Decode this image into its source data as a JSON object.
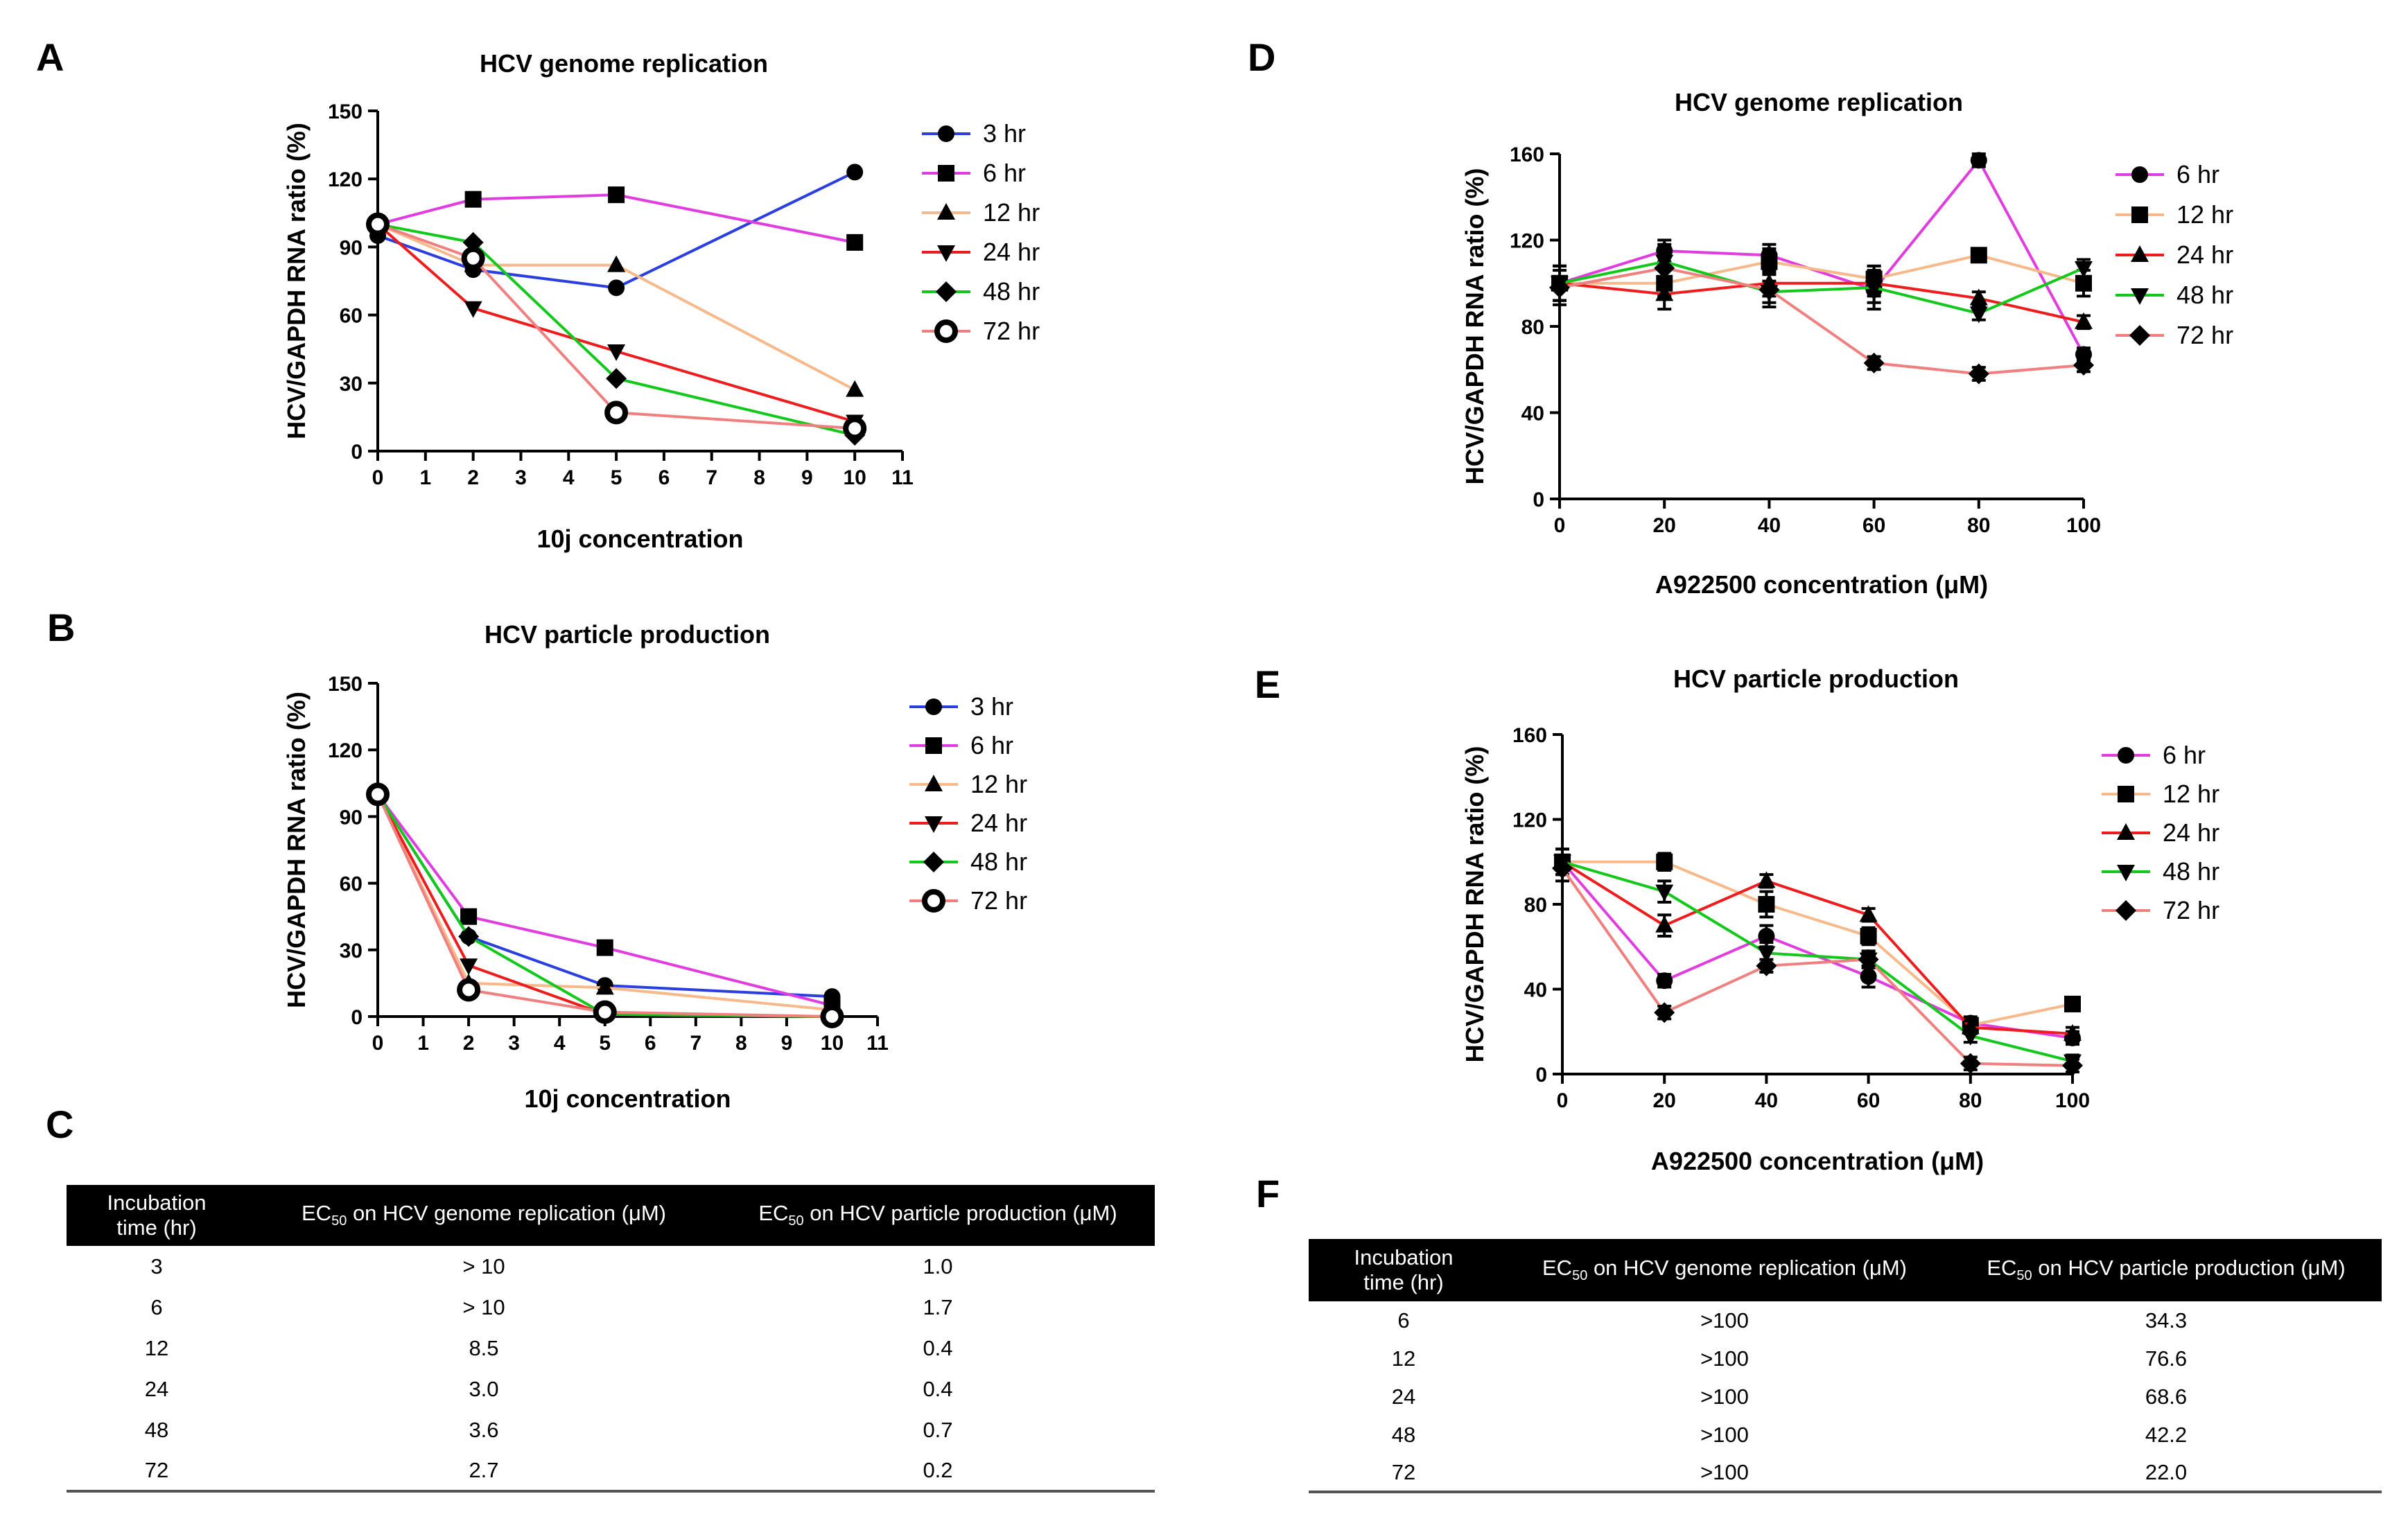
{
  "panels": {
    "A": "A",
    "B": "B",
    "C": "C",
    "D": "D",
    "E": "E",
    "F": "F"
  },
  "chart_data": [
    {
      "id": "A",
      "type": "line",
      "title": "HCV genome replication",
      "xlabel": "10j concentration",
      "ylabel": "HCV/GAPDH RNA ratio (%)",
      "xlim": [
        0,
        11
      ],
      "ylim": [
        0,
        150
      ],
      "xticks": [
        0,
        1,
        2,
        3,
        4,
        5,
        6,
        7,
        8,
        9,
        10,
        11
      ],
      "yticks": [
        0,
        30,
        60,
        90,
        120,
        150
      ],
      "x": [
        0,
        2,
        5,
        10
      ],
      "series": [
        {
          "name": "3 hr",
          "color": "#2b3fe0",
          "marker": "circle",
          "values": [
            95,
            80,
            72,
            123
          ]
        },
        {
          "name": "6 hr",
          "color": "#e03ce0",
          "marker": "square",
          "values": [
            100,
            111,
            113,
            92
          ]
        },
        {
          "name": "12 hr",
          "color": "#f7b98a",
          "marker": "triangle",
          "values": [
            100,
            82,
            82,
            27
          ]
        },
        {
          "name": "24 hr",
          "color": "#ee1c1c",
          "marker": "triangle-down",
          "values": [
            100,
            63,
            44,
            13
          ]
        },
        {
          "name": "48 hr",
          "color": "#12c81a",
          "marker": "diamond",
          "values": [
            100,
            92,
            32,
            7
          ]
        },
        {
          "name": "72 hr",
          "color": "#f08080",
          "marker": "ring",
          "values": [
            100,
            85,
            17,
            10
          ]
        }
      ]
    },
    {
      "id": "B",
      "type": "line",
      "title": "HCV particle production",
      "xlabel": "10j concentration",
      "ylabel": "HCV/GAPDH RNA ratio (%)",
      "xlim": [
        0,
        11
      ],
      "ylim": [
        0,
        150
      ],
      "xticks": [
        0,
        1,
        2,
        3,
        4,
        5,
        6,
        7,
        8,
        9,
        10,
        11
      ],
      "yticks": [
        0,
        30,
        60,
        90,
        120,
        150
      ],
      "x": [
        0,
        2,
        5,
        10
      ],
      "series": [
        {
          "name": "3 hr",
          "color": "#2b3fe0",
          "marker": "circle",
          "values": [
            100,
            36,
            14,
            9
          ]
        },
        {
          "name": "6 hr",
          "color": "#e03ce0",
          "marker": "square",
          "values": [
            100,
            45,
            31,
            5
          ]
        },
        {
          "name": "12 hr",
          "color": "#f7b98a",
          "marker": "triangle",
          "values": [
            100,
            15,
            13,
            3
          ]
        },
        {
          "name": "24 hr",
          "color": "#ee1c1c",
          "marker": "triangle-down",
          "values": [
            100,
            23,
            1,
            0
          ]
        },
        {
          "name": "48 hr",
          "color": "#12c81a",
          "marker": "diamond",
          "values": [
            100,
            36,
            1,
            0
          ]
        },
        {
          "name": "72 hr",
          "color": "#f08080",
          "marker": "ring",
          "values": [
            100,
            12,
            2,
            0
          ]
        }
      ]
    },
    {
      "id": "D",
      "type": "line",
      "title": "HCV genome replication",
      "xlabel": "A922500 concentration (μM)",
      "ylabel": "HCV/GAPDH RNA ratio (%)",
      "xlim": [
        0,
        100
      ],
      "ylim": [
        0,
        160
      ],
      "xticks": [
        0,
        20,
        40,
        60,
        80,
        100
      ],
      "yticks": [
        0,
        40,
        80,
        120,
        160
      ],
      "x": [
        0,
        20,
        40,
        60,
        80,
        100
      ],
      "series": [
        {
          "name": "6 hr",
          "color": "#e03ce0",
          "marker": "circle",
          "values": [
            100,
            115,
            113,
            97,
            157,
            67
          ],
          "errors": [
            8,
            5,
            5,
            6,
            3,
            3
          ]
        },
        {
          "name": "12 hr",
          "color": "#f7b98a",
          "marker": "square",
          "values": [
            100,
            100,
            110,
            102,
            113,
            100
          ],
          "errors": [
            8,
            6,
            6,
            6,
            3,
            6
          ]
        },
        {
          "name": "24 hr",
          "color": "#ee1c1c",
          "marker": "triangle",
          "values": [
            100,
            95,
            100,
            100,
            93,
            82
          ],
          "errors": [
            8,
            7,
            6,
            6,
            3,
            3
          ]
        },
        {
          "name": "48 hr",
          "color": "#12c81a",
          "marker": "triangle-down",
          "values": [
            100,
            110,
            96,
            98,
            86,
            107
          ],
          "errors": [
            8,
            8,
            5,
            10,
            3,
            4
          ]
        },
        {
          "name": "72 hr",
          "color": "#f08080",
          "marker": "diamond",
          "values": [
            98,
            107,
            97,
            63,
            58,
            62
          ],
          "errors": [
            8,
            7,
            8,
            3,
            3,
            3
          ]
        }
      ]
    },
    {
      "id": "E",
      "type": "line",
      "title": "HCV particle production",
      "xlabel": "A922500 concentration (μM)",
      "ylabel": "HCV/GAPDH RNA ratio (%)",
      "xlim": [
        0,
        100
      ],
      "ylim": [
        0,
        160
      ],
      "xticks": [
        0,
        20,
        40,
        60,
        80,
        100
      ],
      "yticks": [
        0,
        40,
        80,
        120,
        160
      ],
      "x": [
        0,
        20,
        40,
        60,
        80,
        100
      ],
      "series": [
        {
          "name": "6 hr",
          "color": "#e03ce0",
          "marker": "circle",
          "values": [
            100,
            44,
            65,
            46,
            24,
            17
          ],
          "errors": [
            6,
            3,
            5,
            5,
            3,
            3
          ]
        },
        {
          "name": "12 hr",
          "color": "#f7b98a",
          "marker": "square",
          "values": [
            100,
            100,
            80,
            65,
            23,
            33
          ],
          "errors": [
            6,
            4,
            6,
            4,
            3,
            3
          ]
        },
        {
          "name": "24 hr",
          "color": "#ee1c1c",
          "marker": "triangle",
          "values": [
            100,
            70,
            91,
            75,
            22,
            19
          ],
          "errors": [
            6,
            5,
            3,
            3,
            3,
            3
          ]
        },
        {
          "name": "48 hr",
          "color": "#12c81a",
          "marker": "triangle-down",
          "values": [
            100,
            86,
            57,
            54,
            18,
            6
          ],
          "errors": [
            6,
            5,
            5,
            4,
            3,
            3
          ]
        },
        {
          "name": "72 hr",
          "color": "#f08080",
          "marker": "diamond",
          "values": [
            97,
            29,
            51,
            54,
            5,
            4
          ],
          "errors": [
            6,
            3,
            3,
            3,
            3,
            3
          ]
        }
      ]
    }
  ],
  "table_c": {
    "headers": [
      "Incubation time (hr)",
      "EC50 on HCV genome replication (μM)",
      "EC50 on HCV particle production (μM)"
    ],
    "header_parts": {
      "incubation_line1": "Incubation",
      "incubation_line2": "time (hr)",
      "ec": "EC",
      "sub": "50",
      "genome": " on HCV genome replication (μM)",
      "particle": " on HCV particle production (μM)"
    },
    "rows": [
      [
        "3",
        "> 10",
        "1.0"
      ],
      [
        "6",
        "> 10",
        "1.7"
      ],
      [
        "12",
        "8.5",
        "0.4"
      ],
      [
        "24",
        "3.0",
        "0.4"
      ],
      [
        "48",
        "3.6",
        "0.7"
      ],
      [
        "72",
        "2.7",
        "0.2"
      ]
    ]
  },
  "table_f": {
    "headers": [
      "Incubation time (hr)",
      "EC50 on HCV genome replication (μM)",
      "EC50 on HCV particle production (μM)"
    ],
    "header_parts": {
      "incubation_line1": "Incubation",
      "incubation_line2": "time (hr)",
      "ec": "EC",
      "sub": "50",
      "genome": " on HCV genome replication (μM)",
      "particle": " on HCV particle production (μM)"
    },
    "rows": [
      [
        "6",
        ">100",
        "34.3"
      ],
      [
        "12",
        ">100",
        "76.6"
      ],
      [
        "24",
        ">100",
        "68.6"
      ],
      [
        "48",
        ">100",
        "42.2"
      ],
      [
        "72",
        ">100",
        "22.0"
      ]
    ]
  }
}
